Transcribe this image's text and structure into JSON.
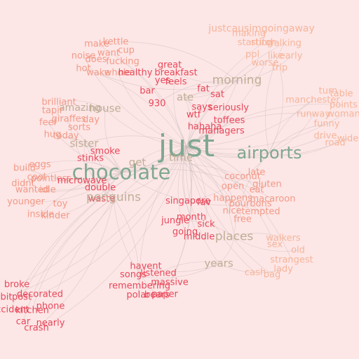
{
  "palette": {
    "red": "#e8485a",
    "salmon": "#f29a87",
    "peach": "#f6b59a",
    "green": "#7fa890",
    "tan": "#bfae96",
    "edge": "#c9bcbc",
    "background": "#fde6e6"
  },
  "words": {
    "justcausimgoingaway": "justcausimgoingaway",
    "making": "making",
    "starting": "starting",
    "stitch": "stitch",
    "walking": "walking",
    "ppl": "ppl",
    "likes": "like",
    "early": "early",
    "worse": "worse",
    "trip": "trip",
    "make": "make",
    "kettle": "kettle",
    "want": "want",
    "cup": "cup",
    "noise": "noise",
    "fucking": "fucking",
    "does": "does",
    "hot": "hot",
    "wake": "wake",
    "whole": "whole",
    "healthy": "healthy",
    "breakfast": "breakfast",
    "great": "great",
    "yes": "yes",
    "feels": "feels",
    "bar": "bar",
    "fat": "fat",
    "sat": "sat",
    "930": "930",
    "morning": "morning",
    "ate": "ate",
    "brilliant": "brilliant",
    "amazing": "amazing",
    "house": "house",
    "tapir": "tapir",
    "feel": "feel",
    "giraffes": "giraffes",
    "day": "day",
    "sorts": "sorts",
    "hug": "hug",
    "today": "today",
    "says": "says",
    "seriously": "seriously",
    "wtf": "wtf",
    "toffees": "toffees",
    "hahaha": "hahaha",
    "managers": "managers",
    "manchester": "manchester",
    "turn": "turn",
    "table": "table",
    "points": "points",
    "runway": "runway",
    "woman": "woman",
    "funny": "funny",
    "drive": "drive",
    "road": "road",
    "wide": "wide",
    "just": "just",
    "airports": "airports",
    "sister": "sister",
    "smoke": "smoke",
    "stinks": "stinks",
    "eggs": "eggs",
    "build": "build",
    "cool": "cool",
    "pointless": "pointless",
    "didnt": "didnt",
    "wanted": "wanted",
    "idle": "idle",
    "younger": "younger",
    "toy": "toy",
    "inside": "inside",
    "kinder": "kinder",
    "chocolate": "chocolate",
    "get": "get",
    "time": "time",
    "microwave": "microwave",
    "double": "double",
    "waste": "waste",
    "penguins": "penguins",
    "late": "late",
    "coconut": "coconut",
    "open": "open",
    "gluten": "gluten",
    "eat": "eat",
    "happens": "happens",
    "macaroon": "macaroon",
    "bourbons": "bourbons",
    "singapore": "singapore",
    "fav": "fav",
    "nice": "nice",
    "tempted": "tempted",
    "free": "free",
    "month": "month",
    "jungle": "jungle",
    "sick": "sick",
    "going": "going",
    "middle": "middle",
    "places": "places",
    "walkers": "walkers",
    "sex": "sex",
    "old": "old",
    "strangest": "strangest",
    "years": "years",
    "havent": "havent",
    "songs": "songs",
    "listened": "listened",
    "massive": "massive",
    "remembering": "remembering",
    "polar": "polar",
    "bears": "bears",
    "paper": "paper",
    "cash": "cash",
    "bag": "bag",
    "lady": "lady",
    "broke": "broke",
    "decorated": "decorated",
    "bit": "bit",
    "post": "post",
    "accident": "accident",
    "phone": "phone",
    "kitchen": "kitchen",
    "car": "car",
    "nearly": "nearly",
    "crash": "crash"
  }
}
